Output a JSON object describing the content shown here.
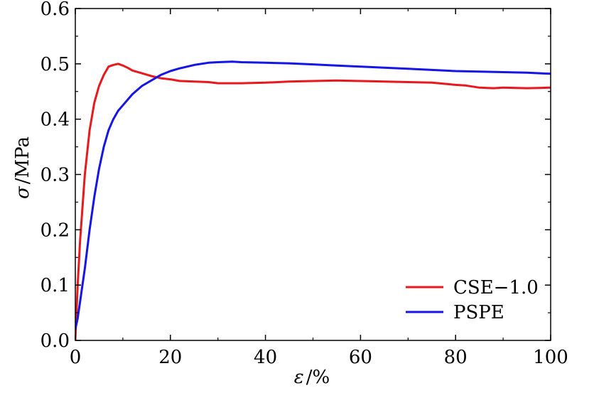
{
  "chart_data": {
    "type": "line",
    "xlabel": {
      "symbol": "ε",
      "unit": "/%"
    },
    "ylabel": {
      "symbol": "σ",
      "unit": "/MPa"
    },
    "xlim": [
      0,
      100
    ],
    "ylim": [
      0.0,
      0.6
    ],
    "xticks": [
      0,
      20,
      40,
      60,
      80,
      100
    ],
    "xtick_labels": [
      "0",
      "20",
      "40",
      "60",
      "80",
      "100"
    ],
    "yticks": [
      0.0,
      0.1,
      0.2,
      0.3,
      0.4,
      0.5,
      0.6
    ],
    "ytick_labels": [
      "0.0",
      "0.1",
      "0.2",
      "0.3",
      "0.4",
      "0.5",
      "0.6"
    ],
    "grid": false,
    "legend_position": "bottom-right",
    "series": [
      {
        "name": "CSE−1.0",
        "color": "#e8191c",
        "x": [
          0,
          0.5,
          1,
          2,
          3,
          4,
          5,
          6,
          7,
          8,
          9,
          10,
          11,
          12,
          14,
          16,
          18,
          20,
          22,
          25,
          28,
          30,
          35,
          40,
          45,
          50,
          55,
          60,
          65,
          70,
          75,
          80,
          82,
          85,
          88,
          90,
          95,
          100
        ],
        "y": [
          0.0,
          0.1,
          0.18,
          0.3,
          0.38,
          0.43,
          0.46,
          0.48,
          0.495,
          0.498,
          0.5,
          0.497,
          0.493,
          0.488,
          0.483,
          0.478,
          0.474,
          0.472,
          0.469,
          0.468,
          0.467,
          0.465,
          0.465,
          0.466,
          0.468,
          0.469,
          0.47,
          0.469,
          0.468,
          0.467,
          0.466,
          0.462,
          0.461,
          0.457,
          0.456,
          0.457,
          0.456,
          0.457
        ]
      },
      {
        "name": "PSPE",
        "color": "#1515e6",
        "x": [
          0,
          0.5,
          1,
          2,
          3,
          4,
          5,
          6,
          7,
          8,
          9,
          10,
          12,
          14,
          16,
          18,
          20,
          22,
          25,
          28,
          30,
          33,
          35,
          40,
          45,
          50,
          55,
          60,
          65,
          70,
          75,
          80,
          85,
          90,
          95,
          100
        ],
        "y": [
          0.02,
          0.04,
          0.07,
          0.13,
          0.2,
          0.26,
          0.31,
          0.35,
          0.38,
          0.4,
          0.415,
          0.425,
          0.445,
          0.46,
          0.47,
          0.48,
          0.487,
          0.492,
          0.498,
          0.502,
          0.503,
          0.504,
          0.503,
          0.502,
          0.501,
          0.499,
          0.497,
          0.495,
          0.493,
          0.491,
          0.489,
          0.487,
          0.486,
          0.485,
          0.484,
          0.482
        ]
      }
    ]
  }
}
